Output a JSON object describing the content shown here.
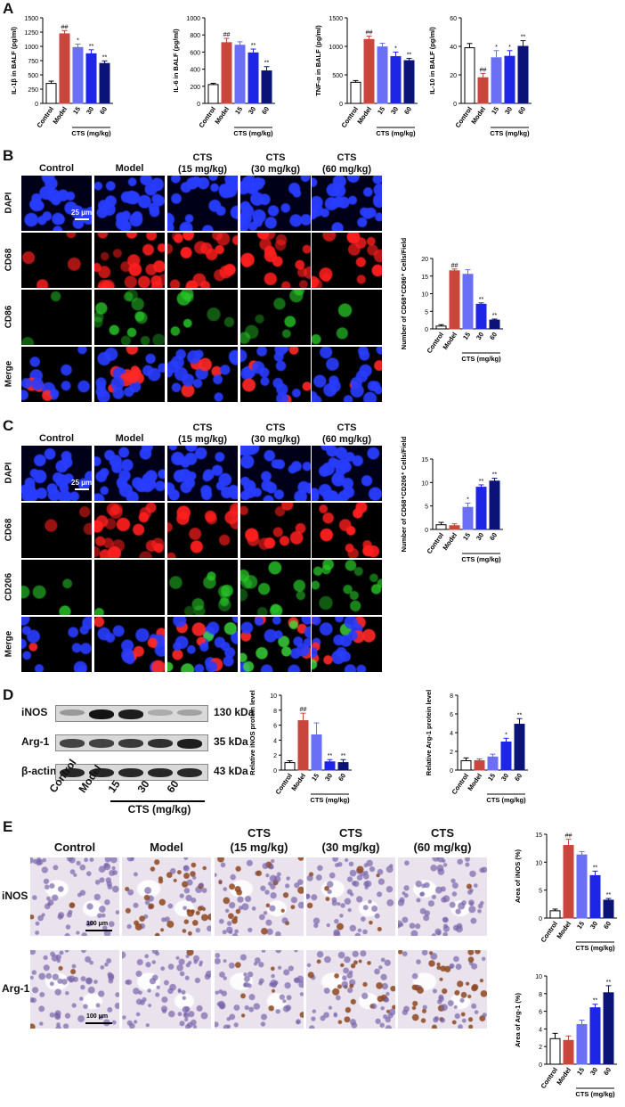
{
  "panels": {
    "A": "A",
    "B": "B",
    "C": "C",
    "D": "D",
    "E": "E"
  },
  "groups": [
    "Control",
    "Model",
    "15",
    "30",
    "60"
  ],
  "cts_label": "CTS (mg/kg)",
  "colors": {
    "control": "#ffffff",
    "model": "#c9463d",
    "cts15": "#6b6ff5",
    "cts30": "#1f25e6",
    "cts60": "#0b1378"
  },
  "panel_b": {
    "headers": [
      "Control",
      "Model",
      "CTS",
      "CTS",
      "CTS"
    ],
    "subheaders": [
      "",
      "",
      "(15 mg/kg)",
      "(30 mg/kg)",
      "(60 mg/kg)"
    ],
    "rows": [
      "DAPI",
      "CD68",
      "CD86",
      "Merge"
    ],
    "scale_bar": "25 μm"
  },
  "panel_c": {
    "headers": [
      "Control",
      "Model",
      "CTS",
      "CTS",
      "CTS"
    ],
    "subheaders": [
      "",
      "",
      "(15 mg/kg)",
      "(30 mg/kg)",
      "(60 mg/kg)"
    ],
    "rows": [
      "DAPI",
      "CD68",
      "CD206",
      "Merge"
    ],
    "scale_bar": "25 μm"
  },
  "panel_d": {
    "proteins": [
      "iNOS",
      "Arg-1",
      "β-actin"
    ],
    "kda": [
      "130 kDa",
      "35 kDa",
      "43 kDa"
    ],
    "lanes": [
      "Control",
      "Model",
      "15",
      "30",
      "60"
    ],
    "cts_label": "CTS (mg/kg)",
    "band_intensity": {
      "iNOS": [
        0.25,
        0.95,
        0.9,
        0.15,
        0.2
      ],
      "Arg-1": [
        0.7,
        0.7,
        0.75,
        0.8,
        0.9
      ],
      "β-actin": [
        0.85,
        0.85,
        0.85,
        0.85,
        0.85
      ]
    }
  },
  "panel_e": {
    "headers": [
      "Control",
      "Model",
      "CTS",
      "CTS",
      "CTS"
    ],
    "subheaders": [
      "",
      "",
      "(15 mg/kg)",
      "(30 mg/kg)",
      "(60 mg/kg)"
    ],
    "rows": [
      "iNOS",
      "Arg-1"
    ],
    "scale_bar": "100 μm"
  },
  "chart_data": [
    {
      "type": "bar",
      "panel": "A",
      "ylabel": "IL-1β in BALF (pg/ml)",
      "ylim": [
        0,
        1500
      ],
      "yticks": [
        0,
        250,
        500,
        750,
        1000,
        1250,
        1500
      ],
      "categories": [
        "Control",
        "Model",
        "15",
        "30",
        "60"
      ],
      "values": [
        350,
        1220,
        980,
        870,
        700
      ],
      "errors": [
        40,
        55,
        60,
        70,
        45
      ],
      "annotations": [
        "",
        "##",
        "*",
        "**",
        "**"
      ]
    },
    {
      "type": "bar",
      "panel": "A",
      "ylabel": "IL-6 in BALF (pg/ml)",
      "ylim": [
        0,
        1000
      ],
      "yticks": [
        0,
        200,
        400,
        600,
        800,
        1000
      ],
      "categories": [
        "Control",
        "Model",
        "15",
        "30",
        "60"
      ],
      "values": [
        220,
        710,
        680,
        590,
        380
      ],
      "errors": [
        15,
        50,
        40,
        45,
        50
      ],
      "annotations": [
        "",
        "##",
        "",
        "**",
        "**"
      ]
    },
    {
      "type": "bar",
      "panel": "A",
      "ylabel": "TNF-α in BALF (pg/ml)",
      "ylim": [
        0,
        1500
      ],
      "yticks": [
        0,
        500,
        1000,
        1500
      ],
      "categories": [
        "Control",
        "Model",
        "15",
        "30",
        "60"
      ],
      "values": [
        370,
        1120,
        990,
        820,
        750
      ],
      "errors": [
        30,
        60,
        65,
        80,
        40
      ],
      "annotations": [
        "",
        "##",
        "",
        "*",
        "**"
      ]
    },
    {
      "type": "bar",
      "panel": "A",
      "ylabel": "IL-10 in BALF (pg/ml)",
      "ylim": [
        0,
        60
      ],
      "yticks": [
        0,
        20,
        40,
        60
      ],
      "categories": [
        "Control",
        "Model",
        "15",
        "30",
        "60"
      ],
      "values": [
        39,
        18,
        32,
        33,
        40
      ],
      "errors": [
        3,
        3,
        5,
        4,
        4
      ],
      "annotations": [
        "",
        "##",
        "*",
        "*",
        "**"
      ]
    },
    {
      "type": "bar",
      "panel": "B",
      "ylabel": "Number of CD68⁺CD86⁺ Cells/Field",
      "ylim": [
        0,
        20
      ],
      "yticks": [
        0,
        5,
        10,
        15,
        20
      ],
      "categories": [
        "Control",
        "Model",
        "15",
        "30",
        "60"
      ],
      "values": [
        0.8,
        16.5,
        15.5,
        7.0,
        2.5
      ],
      "errors": [
        0.4,
        0.5,
        1.3,
        0.4,
        0.3
      ],
      "annotations": [
        "",
        "##",
        "",
        "**",
        "**"
      ]
    },
    {
      "type": "bar",
      "panel": "C",
      "ylabel": "Number of CD68⁺CD206⁺ Cells/Field",
      "ylim": [
        0,
        15
      ],
      "yticks": [
        0,
        5,
        10,
        15
      ],
      "categories": [
        "Control",
        "Model",
        "15",
        "30",
        "60"
      ],
      "values": [
        1.0,
        0.8,
        4.7,
        9.0,
        10.3
      ],
      "errors": [
        0.5,
        0.4,
        0.9,
        0.5,
        0.6
      ],
      "annotations": [
        "",
        "",
        "*",
        "**",
        "**"
      ]
    },
    {
      "type": "bar",
      "panel": "D",
      "ylabel": "Relative iNOS protein level",
      "ylim": [
        0,
        10
      ],
      "yticks": [
        0,
        2,
        4,
        6,
        8,
        10
      ],
      "categories": [
        "Control",
        "Model",
        "15",
        "30",
        "60"
      ],
      "values": [
        1.0,
        6.6,
        4.7,
        1.1,
        1.0
      ],
      "errors": [
        0.25,
        1.0,
        1.6,
        0.3,
        0.4
      ],
      "annotations": [
        "",
        "##",
        "",
        "**",
        "**"
      ]
    },
    {
      "type": "bar",
      "panel": "D",
      "ylabel": "Relative Arg-1 protein level",
      "ylim": [
        0,
        8
      ],
      "yticks": [
        0,
        2,
        4,
        6,
        8
      ],
      "categories": [
        "Control",
        "Model",
        "15",
        "30",
        "60"
      ],
      "values": [
        1.0,
        1.0,
        1.4,
        3.0,
        4.9
      ],
      "errors": [
        0.3,
        0.2,
        0.3,
        0.4,
        0.6
      ],
      "annotations": [
        "",
        "",
        "",
        "*",
        "**"
      ]
    },
    {
      "type": "bar",
      "panel": "E",
      "ylabel": "Area of iNOS (%)",
      "ylim": [
        0,
        15
      ],
      "yticks": [
        0,
        5,
        10,
        15
      ],
      "categories": [
        "Control",
        "Model",
        "15",
        "30",
        "60"
      ],
      "values": [
        1.3,
        13.0,
        11.3,
        7.6,
        3.2
      ],
      "errors": [
        0.3,
        1.1,
        0.6,
        0.8,
        0.3
      ],
      "annotations": [
        "",
        "##",
        "",
        "**",
        "**"
      ]
    },
    {
      "type": "bar",
      "panel": "E",
      "ylabel": "Area of Arg-1 (%)",
      "ylim": [
        0,
        10
      ],
      "yticks": [
        0,
        2,
        4,
        6,
        8,
        10
      ],
      "categories": [
        "Control",
        "Model",
        "15",
        "30",
        "60"
      ],
      "values": [
        2.9,
        2.7,
        4.5,
        6.4,
        8.1
      ],
      "errors": [
        0.6,
        0.5,
        0.5,
        0.4,
        0.8
      ],
      "annotations": [
        "",
        "",
        "",
        "**",
        "**"
      ]
    }
  ]
}
